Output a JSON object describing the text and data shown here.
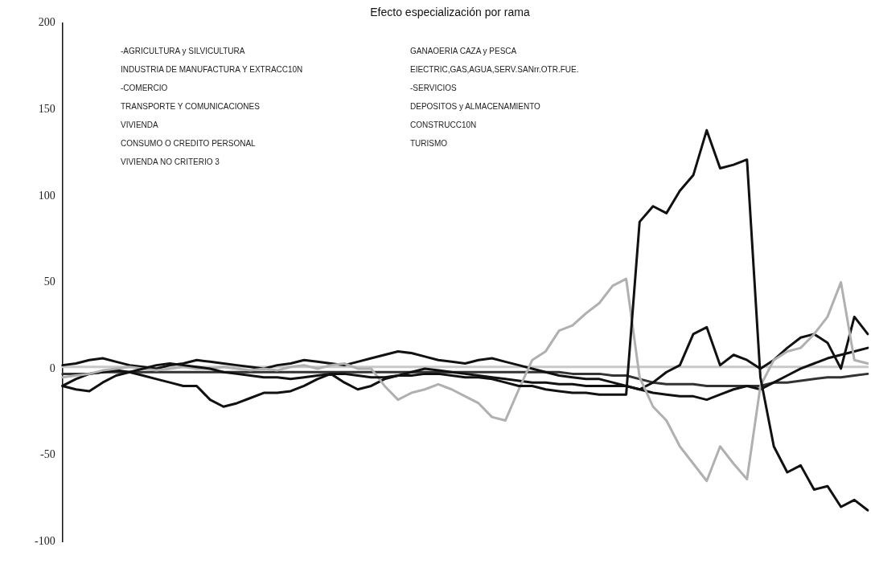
{
  "chart_data": {
    "type": "line",
    "title": "Efecto especialización por rama",
    "categories": [
      null,
      null,
      null,
      null,
      null,
      null,
      null,
      null,
      null,
      null,
      null,
      null,
      null,
      null,
      null,
      null,
      null,
      null,
      null,
      null,
      null,
      null,
      null,
      null,
      null,
      null,
      null,
      null,
      null,
      null,
      null,
      null,
      null,
      null,
      null,
      null,
      null,
      null,
      null,
      null,
      null,
      null,
      null,
      null,
      null,
      null,
      null,
      null,
      null,
      null,
      null,
      null,
      null,
      null,
      null,
      null,
      null,
      null,
      null,
      null,
      null
    ],
    "series": [
      {
        "color": "#111111",
        "values": [
          -10,
          -12,
          -13,
          -8,
          -4,
          -2,
          0,
          2,
          3,
          2,
          1,
          0,
          -2,
          -3,
          -4,
          -5,
          -5,
          -6,
          -5,
          -4,
          -3,
          -3,
          -4,
          -5,
          -5,
          -4,
          -4,
          -3,
          -3,
          -4,
          -5,
          -5,
          -6,
          -8,
          -10,
          -10,
          -12,
          -13,
          -14,
          -14,
          -15,
          -15,
          -15,
          85,
          94,
          90,
          103,
          112,
          138,
          116,
          118,
          121,
          -5,
          -45,
          -60,
          -56,
          -70,
          -68,
          -80,
          -76,
          -82
        ]
      },
      {
        "color": "#b0b0b0",
        "values": [
          -5,
          -4,
          -3,
          -1,
          0,
          1,
          0,
          -1,
          0,
          1,
          0,
          0,
          1,
          0,
          -1,
          0,
          -1,
          1,
          2,
          0,
          2,
          3,
          0,
          0,
          -10,
          -18,
          -14,
          -12,
          -9,
          -12,
          -16,
          -20,
          -28,
          -30,
          -12,
          5,
          10,
          22,
          25,
          32,
          38,
          48,
          52,
          -5,
          -22,
          -30,
          -45,
          -55,
          -65,
          -45,
          -55,
          -64,
          -10,
          5,
          10,
          12,
          20,
          30,
          50,
          5,
          3
        ]
      },
      {
        "color": "#111111",
        "values": [
          2,
          3,
          5,
          6,
          4,
          2,
          1,
          0,
          2,
          3,
          5,
          4,
          3,
          2,
          1,
          0,
          2,
          3,
          5,
          4,
          3,
          2,
          4,
          6,
          8,
          10,
          9,
          7,
          5,
          4,
          3,
          5,
          6,
          4,
          2,
          0,
          -2,
          -4,
          -5,
          -6,
          -6,
          -8,
          -10,
          -12,
          -8,
          -2,
          2,
          20,
          24,
          2,
          8,
          5,
          0,
          5,
          12,
          18,
          20,
          15,
          0,
          30,
          20
        ]
      },
      {
        "color": "#111111",
        "values": [
          -10,
          -6,
          -3,
          -2,
          -1,
          -2,
          -4,
          -6,
          -8,
          -10,
          -10,
          -18,
          -22,
          -20,
          -17,
          -14,
          -14,
          -13,
          -10,
          -6,
          -3,
          -8,
          -12,
          -10,
          -6,
          -4,
          -2,
          0,
          -1,
          -2,
          -3,
          -4,
          -5,
          -6,
          -7,
          -8,
          -8,
          -9,
          -9,
          -10,
          -10,
          -10,
          -10,
          -12,
          -14,
          -15,
          -16,
          -16,
          -18,
          -15,
          -12,
          -10,
          -12,
          -8,
          -4,
          0,
          3,
          6,
          8,
          10,
          12
        ]
      },
      {
        "color": "#c8c8c8",
        "values": [
          1,
          1,
          1,
          1,
          1,
          1,
          1,
          1,
          1,
          1,
          1,
          1,
          1,
          1,
          1,
          1,
          1,
          1,
          1,
          1,
          1,
          1,
          1,
          1,
          1,
          1,
          1,
          1,
          1,
          1,
          1,
          1,
          1,
          1,
          1,
          1,
          1,
          1,
          1,
          1,
          1,
          1,
          1,
          1,
          1,
          1,
          1,
          1,
          1,
          1,
          1,
          1,
          1,
          1,
          1,
          1,
          1,
          1,
          1,
          1,
          1
        ]
      },
      {
        "color": "#333333",
        "values": [
          -3,
          -3,
          -3,
          -2,
          -2,
          -2,
          -2,
          -2,
          -2,
          -2,
          -2,
          -2,
          -2,
          -2,
          -2,
          -2,
          -2,
          -2,
          -2,
          -2,
          -2,
          -2,
          -2,
          -2,
          -2,
          -2,
          -2,
          -2,
          -2,
          -2,
          -2,
          -2,
          -2,
          -2,
          -2,
          -2,
          -2,
          -2,
          -3,
          -3,
          -3,
          -4,
          -4,
          -6,
          -8,
          -9,
          -9,
          -9,
          -10,
          -10,
          -10,
          -10,
          -10,
          -8,
          -8,
          -7,
          -6,
          -5,
          -5,
          -4,
          -3
        ]
      }
    ],
    "ylim": [
      -100,
      200
    ],
    "yticks": [
      -100,
      -50,
      0,
      50,
      100,
      150,
      200
    ],
    "grid": false,
    "tick_labels": "y",
    "marker": "none",
    "line_style": "solid",
    "annotations": [
      "-AGRICULTURA y SILVICULTURA",
      "INDUSTRIA DE MANUFACTURA Y EXTRACC10N",
      "-COMERCIO",
      "TRANSPORTE Y COMUNICACIONES",
      "VIVIENDA",
      "CONSUMO O CREDITO PERSONAL",
      "VIVIENDA NO CRITERIO 3",
      "GANAOERIA CAZA y PESCA",
      "EIECTRIC,GAS,AGUA,SERV.SANrr.OTR.FUE.",
      "-SERVICIOS",
      "DEPOSITOS y ALMACENAMIENTO",
      "CONSTRUCC10N",
      "TURISMO"
    ]
  }
}
